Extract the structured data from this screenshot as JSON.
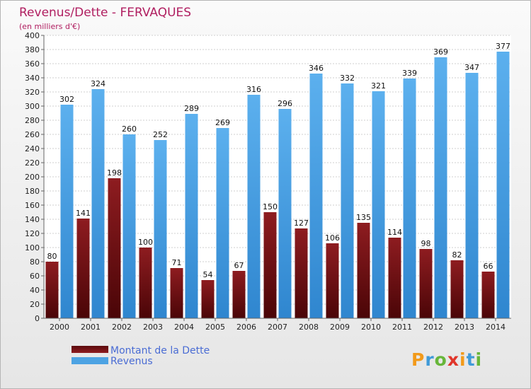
{
  "chart_data": {
    "type": "bar",
    "title": "Revenus/Dette - FERVAQUES",
    "subtitle": "(en milliers d'€)",
    "categories": [
      "2000",
      "2001",
      "2002",
      "2003",
      "2004",
      "2005",
      "2006",
      "2007",
      "2008",
      "2009",
      "2010",
      "2011",
      "2012",
      "2013",
      "2014"
    ],
    "series": [
      {
        "name": "Montant de la Dette",
        "color": "#7a1518",
        "values": [
          80,
          141,
          198,
          100,
          71,
          54,
          67,
          150,
          127,
          106,
          135,
          114,
          98,
          82,
          66
        ]
      },
      {
        "name": "Revenus",
        "color": "#4da3e3",
        "values": [
          302,
          324,
          260,
          252,
          289,
          269,
          316,
          296,
          346,
          332,
          321,
          339,
          369,
          347,
          377
        ]
      }
    ],
    "ylim": [
      0,
      400
    ],
    "ytick_step": 20,
    "grid": true,
    "legend_position": "bottom-left",
    "logo": "Proxiti"
  }
}
